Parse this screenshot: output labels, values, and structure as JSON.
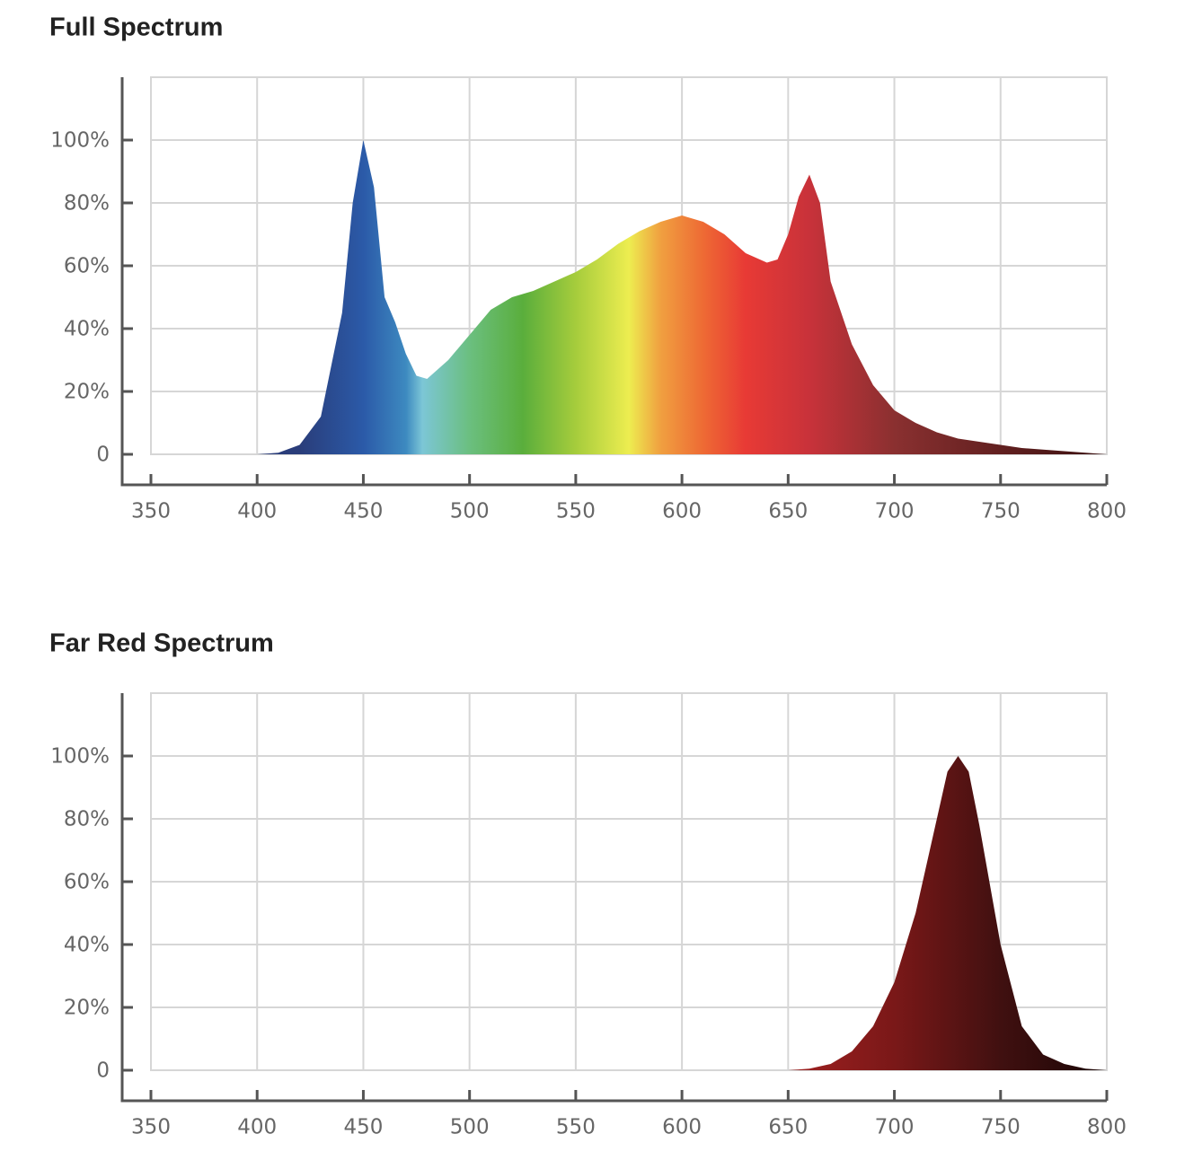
{
  "chart_data": [
    {
      "type": "area",
      "title": "Full Spectrum",
      "x": [
        350,
        400,
        410,
        420,
        430,
        440,
        445,
        450,
        455,
        460,
        465,
        470,
        475,
        480,
        490,
        500,
        510,
        520,
        530,
        540,
        550,
        560,
        570,
        580,
        590,
        600,
        610,
        620,
        630,
        640,
        645,
        650,
        655,
        660,
        665,
        670,
        680,
        690,
        700,
        710,
        720,
        730,
        740,
        750,
        760,
        770,
        780,
        790,
        800
      ],
      "values": [
        0,
        0,
        0.5,
        3,
        12,
        45,
        80,
        100,
        85,
        50,
        42,
        32,
        25,
        24,
        30,
        38,
        46,
        50,
        52,
        55,
        58,
        62,
        67,
        71,
        74,
        76,
        74,
        70,
        64,
        61,
        62,
        70,
        82,
        89,
        80,
        55,
        35,
        22,
        14,
        10,
        7,
        5,
        4,
        3,
        2,
        1.5,
        1,
        0.5,
        0
      ],
      "xlim": [
        350,
        800
      ],
      "ylim": [
        0,
        120
      ],
      "xticks": [
        350,
        400,
        450,
        500,
        550,
        600,
        650,
        700,
        750,
        800
      ],
      "yticks": [
        0,
        {
          "value": 20,
          "label": "20%"
        },
        {
          "value": 40,
          "label": "40%"
        },
        {
          "value": 60,
          "label": "60%"
        },
        {
          "value": 80,
          "label": "80%"
        },
        {
          "value": 100,
          "label": "100%"
        }
      ],
      "grid": true
    },
    {
      "type": "area",
      "title": "Far Red Spectrum",
      "x": [
        350,
        650,
        660,
        670,
        680,
        690,
        700,
        710,
        720,
        725,
        730,
        735,
        740,
        750,
        760,
        770,
        780,
        790,
        800
      ],
      "values": [
        0,
        0,
        0.5,
        2,
        6,
        14,
        28,
        50,
        80,
        95,
        100,
        95,
        78,
        40,
        14,
        5,
        2,
        0.5,
        0
      ],
      "xlim": [
        350,
        800
      ],
      "ylim": [
        0,
        120
      ],
      "xticks": [
        350,
        400,
        450,
        500,
        550,
        600,
        650,
        700,
        750,
        800
      ],
      "yticks": [
        0,
        {
          "value": 20,
          "label": "20%"
        },
        {
          "value": 40,
          "label": "40%"
        },
        {
          "value": 60,
          "label": "60%"
        },
        {
          "value": 80,
          "label": "80%"
        },
        {
          "value": 100,
          "label": "100%"
        }
      ],
      "grid": true
    }
  ]
}
